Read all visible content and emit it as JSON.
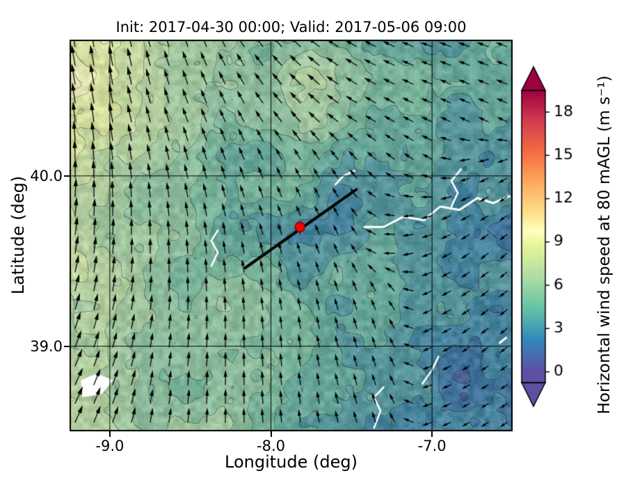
{
  "figure": {
    "title": "Init: 2017-04-30 00:00; Valid: 2017-05-06 09:00",
    "xlabel": "Longitude (deg)",
    "ylabel": "Latitude (deg)",
    "colorbar_label": "Horizontal wind speed at 80 mAGL (m s⁻¹)"
  },
  "chart_data": {
    "type": "heatmap",
    "title": "Init: 2017-04-30 00:00; Valid: 2017-05-06 09:00",
    "xlabel": "Longitude (deg)",
    "ylabel": "Latitude (deg)",
    "x_range": [
      -9.25,
      -6.5
    ],
    "y_range": [
      38.5,
      40.8
    ],
    "x_ticks": [
      -9.0,
      -8.0,
      -7.0
    ],
    "y_ticks": [
      39.0,
      40.0
    ],
    "grid": true,
    "overlay": "wind quiver arrows, transect line, site marker",
    "colorbar": {
      "label": "Horizontal wind speed at 80 mAGL (m s⁻¹)",
      "ticks": [
        0,
        3,
        6,
        9,
        12,
        15,
        18
      ],
      "range": [
        0,
        19.5
      ],
      "extend": "both",
      "colormap": [
        [
          0.0,
          "#5e4fa2"
        ],
        [
          2.2,
          "#3288bd"
        ],
        [
          4.4,
          "#66c2a5"
        ],
        [
          6.5,
          "#abdda4"
        ],
        [
          8.7,
          "#e6f598"
        ],
        [
          9.8,
          "#ffffbf"
        ],
        [
          11.0,
          "#fee08b"
        ],
        [
          13.0,
          "#fdae61"
        ],
        [
          15.2,
          "#f46d43"
        ],
        [
          17.3,
          "#d53e4f"
        ],
        [
          19.5,
          "#9e0142"
        ]
      ]
    },
    "speed_grid": {
      "units": "m s-1",
      "lons": [
        -9.25,
        -9.0,
        -8.75,
        -8.5,
        -8.25,
        -8.0,
        -7.75,
        -7.5,
        -7.25,
        -7.0,
        -6.75,
        -6.5
      ],
      "lats": [
        40.8,
        40.55,
        40.3,
        40.05,
        39.8,
        39.55,
        39.3,
        39.05,
        38.8,
        38.5
      ],
      "values": [
        [
          9.5,
          9.0,
          6.5,
          6.0,
          5.5,
          5.0,
          5.5,
          5.0,
          4.5,
          4.0,
          4.0,
          4.0
        ],
        [
          9.5,
          9.0,
          6.5,
          6.0,
          5.5,
          5.5,
          6.5,
          5.0,
          4.5,
          4.0,
          4.0,
          4.0
        ],
        [
          9.0,
          8.5,
          6.5,
          6.0,
          5.0,
          5.0,
          6.0,
          4.5,
          4.0,
          4.0,
          3.5,
          3.5
        ],
        [
          8.5,
          7.0,
          6.0,
          5.5,
          5.0,
          4.5,
          4.0,
          4.0,
          3.5,
          3.5,
          3.0,
          3.0
        ],
        [
          8.0,
          6.5,
          6.0,
          5.5,
          4.5,
          4.0,
          3.5,
          3.0,
          3.0,
          3.5,
          3.0,
          2.5
        ],
        [
          7.5,
          6.5,
          6.0,
          5.5,
          4.5,
          4.0,
          3.5,
          3.5,
          3.5,
          3.5,
          3.0,
          2.5
        ],
        [
          7.0,
          6.5,
          6.0,
          5.5,
          5.0,
          4.5,
          4.0,
          4.0,
          3.5,
          3.5,
          3.0,
          3.0
        ],
        [
          7.5,
          6.0,
          5.5,
          5.5,
          5.0,
          4.5,
          4.5,
          4.0,
          3.5,
          3.0,
          2.5,
          2.5
        ],
        [
          8.0,
          6.5,
          5.5,
          5.5,
          5.5,
          5.0,
          4.5,
          4.0,
          3.5,
          3.0,
          2.0,
          2.0
        ],
        [
          8.0,
          7.0,
          5.5,
          5.5,
          5.5,
          5.0,
          4.5,
          4.0,
          3.5,
          3.0,
          2.0,
          2.0
        ]
      ]
    },
    "direction_grid_deg": [
      [
        100,
        100,
        105,
        110,
        120,
        130,
        140,
        150,
        155,
        160,
        160,
        160
      ],
      [
        100,
        100,
        105,
        110,
        118,
        128,
        138,
        148,
        153,
        158,
        158,
        158
      ],
      [
        95,
        100,
        105,
        110,
        115,
        125,
        135,
        145,
        150,
        155,
        155,
        155
      ],
      [
        90,
        95,
        100,
        105,
        110,
        115,
        120,
        130,
        140,
        150,
        200,
        210
      ],
      [
        85,
        90,
        95,
        100,
        105,
        110,
        115,
        120,
        170,
        195,
        210,
        215
      ],
      [
        80,
        85,
        90,
        95,
        100,
        105,
        110,
        115,
        180,
        200,
        215,
        220
      ],
      [
        75,
        80,
        85,
        90,
        95,
        100,
        105,
        110,
        120,
        205,
        215,
        220
      ],
      [
        70,
        75,
        80,
        85,
        90,
        95,
        100,
        105,
        110,
        205,
        215,
        220
      ],
      [
        65,
        70,
        80,
        85,
        90,
        95,
        100,
        105,
        110,
        200,
        210,
        215
      ],
      [
        65,
        70,
        80,
        85,
        90,
        95,
        100,
        105,
        110,
        200,
        210,
        215
      ]
    ],
    "marker": {
      "lon": -7.82,
      "lat": 39.7,
      "color": "#ff0000"
    },
    "transect": {
      "from": [
        -8.16,
        39.46
      ],
      "to": [
        -7.47,
        39.92
      ]
    },
    "water_features": [
      {
        "kind": "line",
        "width": 3,
        "points": [
          [
            -6.52,
            39.88
          ],
          [
            -6.62,
            39.84
          ],
          [
            -6.72,
            39.87
          ],
          [
            -6.83,
            39.8
          ],
          [
            -6.95,
            39.82
          ],
          [
            -7.05,
            39.74
          ],
          [
            -7.18,
            39.76
          ],
          [
            -7.3,
            39.7
          ],
          [
            -7.42,
            39.7
          ]
        ]
      },
      {
        "kind": "line",
        "width": 2.5,
        "points": [
          [
            -6.88,
            39.82
          ],
          [
            -6.84,
            39.9
          ],
          [
            -6.88,
            39.97
          ],
          [
            -6.82,
            40.04
          ]
        ]
      },
      {
        "kind": "line",
        "width": 2.5,
        "points": [
          [
            -8.37,
            39.47
          ],
          [
            -8.33,
            39.55
          ],
          [
            -8.37,
            39.62
          ],
          [
            -8.33,
            39.68
          ]
        ]
      },
      {
        "kind": "line",
        "width": 2.5,
        "points": [
          [
            -7.6,
            39.95
          ],
          [
            -7.55,
            40.0
          ],
          [
            -7.48,
            40.03
          ]
        ]
      },
      {
        "kind": "line",
        "width": 2.5,
        "points": [
          [
            -7.36,
            38.52
          ],
          [
            -7.32,
            38.62
          ],
          [
            -7.36,
            38.7
          ],
          [
            -7.3,
            38.76
          ]
        ]
      },
      {
        "kind": "patch",
        "points": [
          [
            -9.17,
            38.7
          ],
          [
            -9.05,
            38.72
          ],
          [
            -8.98,
            38.8
          ],
          [
            -9.08,
            38.84
          ],
          [
            -9.18,
            38.8
          ]
        ]
      },
      {
        "kind": "line",
        "width": 2.5,
        "points": [
          [
            -7.06,
            38.78
          ],
          [
            -7.0,
            38.86
          ],
          [
            -6.96,
            38.94
          ]
        ]
      },
      {
        "kind": "line",
        "width": 3,
        "points": [
          [
            -6.58,
            39.02
          ],
          [
            -6.54,
            39.05
          ]
        ]
      }
    ]
  }
}
